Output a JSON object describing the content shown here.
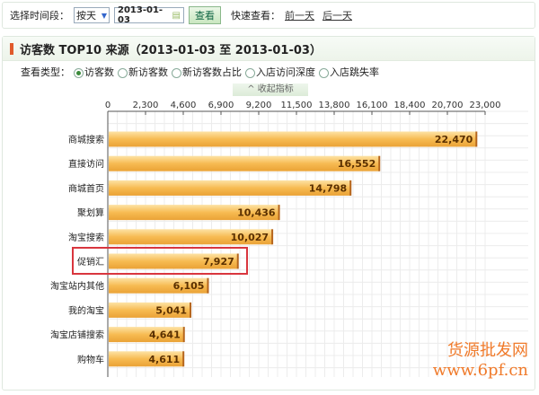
{
  "toolbar": {
    "period_label": "选择时间段：",
    "period_value": "按天",
    "date_value": "2013-01-03",
    "view_button": "查看",
    "quick_label": "快速查看：",
    "prev_day": "前一天",
    "next_day": "后一天"
  },
  "panel": {
    "title": "访客数 TOP10 来源（2013-01-03 至 2013-01-03）",
    "type_label": "查看类型：",
    "types": [
      {
        "label": "访客数",
        "selected": true
      },
      {
        "label": "新访客数",
        "selected": false
      },
      {
        "label": "新访客数占比",
        "selected": false
      },
      {
        "label": "入店访问深度",
        "selected": false
      },
      {
        "label": "入店跳失率",
        "selected": false
      }
    ],
    "collapse_label": "收起指标"
  },
  "watermark": {
    "line1": "货源批发网",
    "line2": "www.6pf.cn"
  },
  "colors": {
    "bar": "#f5b445",
    "highlight_box": "#d9363e",
    "accent": "#e05a2b"
  },
  "chart_data": {
    "type": "bar",
    "orientation": "horizontal",
    "categories": [
      "商城搜索",
      "直接访问",
      "商城首页",
      "聚划算",
      "淘宝搜索",
      "促销汇",
      "淘宝站内其他",
      "我的淘宝",
      "淘宝店铺搜索",
      "购物车"
    ],
    "values": [
      22470,
      16552,
      14798,
      10436,
      10027,
      7927,
      6105,
      5041,
      4641,
      4611
    ],
    "value_labels": [
      "22,470",
      "16,552",
      "14,798",
      "10,436",
      "10,027",
      "7,927",
      "6,105",
      "5,041",
      "4,641",
      "4,611"
    ],
    "xticks": [
      "0",
      "2,300",
      "4,600",
      "6,900",
      "9,200",
      "11,500",
      "13,800",
      "16,100",
      "18,400",
      "20,700",
      "23,000"
    ],
    "xlim": [
      0,
      23000
    ],
    "grid": true,
    "axis_position": "top",
    "highlighted": "促销汇"
  }
}
